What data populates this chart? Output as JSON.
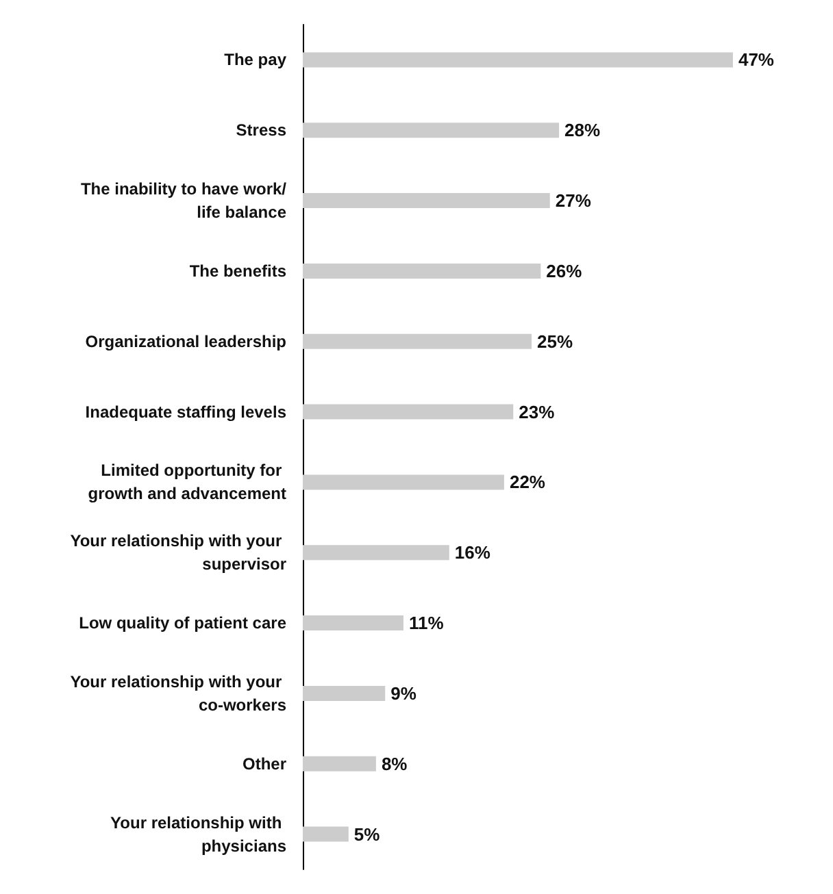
{
  "chart_data": {
    "type": "bar",
    "orientation": "horizontal",
    "categories": [
      "The pay",
      "Stress",
      "The inability to have work/life balance",
      "The benefits",
      "Organizational leadership",
      "Inadequate staffing levels",
      "Limited opportunity for growth and advancement",
      "Your relationship with your supervisor",
      "Low quality of patient care",
      "Your relationship with your co-workers",
      "Other",
      "Your relationship with physicians"
    ],
    "values": [
      47,
      28,
      27,
      26,
      25,
      23,
      22,
      16,
      11,
      9,
      8,
      5
    ],
    "value_labels": [
      "47%",
      "28%",
      "27%",
      "26%",
      "25%",
      "23%",
      "22%",
      "16%",
      "11%",
      "9%",
      "8%",
      "5%"
    ],
    "color": "#cccccc",
    "grid": false
  }
}
